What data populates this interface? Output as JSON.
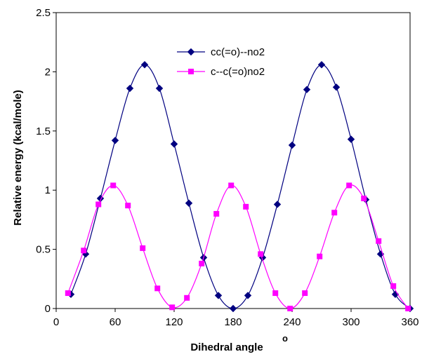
{
  "chart_data": {
    "type": "line",
    "xlabel": "Dihedral angle",
    "xlabel_superscript": "o",
    "ylabel": "Relative energy (kcal/mole)",
    "xlim": [
      0,
      360
    ],
    "ylim": [
      0,
      2.5
    ],
    "x_ticks": [
      0,
      60,
      120,
      180,
      240,
      300,
      360
    ],
    "y_ticks": [
      0,
      0.5,
      1,
      1.5,
      2,
      2.5
    ],
    "y_tick_labels": [
      "0",
      "0.5",
      "1",
      "1.5",
      "2",
      "2.5"
    ],
    "grid": false,
    "legend_position": "top-center",
    "series": [
      {
        "name": "cc(=o)--no2",
        "color": "#000080",
        "marker": "diamond",
        "x": [
          15,
          30,
          45,
          60,
          75,
          90,
          105,
          120,
          135,
          150,
          165,
          180,
          195,
          210,
          225,
          240,
          255,
          270,
          285,
          300,
          315,
          330,
          345,
          360
        ],
        "values": [
          0.12,
          0.46,
          0.93,
          1.42,
          1.86,
          2.06,
          1.86,
          1.39,
          0.89,
          0.43,
          0.11,
          0.0,
          0.11,
          0.43,
          0.88,
          1.38,
          1.85,
          2.06,
          1.87,
          1.43,
          0.92,
          0.46,
          0.12,
          0.0
        ]
      },
      {
        "name": "c--c(=o)no2",
        "color": "#ff00ff",
        "marker": "square",
        "x": [
          12,
          28,
          43,
          58,
          73,
          88,
          103,
          118,
          133,
          148,
          163,
          178,
          193,
          208,
          223,
          238,
          253,
          268,
          283,
          298,
          313,
          328,
          343,
          358
        ],
        "values": [
          0.13,
          0.49,
          0.88,
          1.04,
          0.87,
          0.51,
          0.17,
          0.01,
          0.09,
          0.38,
          0.8,
          1.04,
          0.86,
          0.46,
          0.13,
          0.0,
          0.13,
          0.44,
          0.81,
          1.04,
          0.93,
          0.57,
          0.19,
          0.0
        ]
      }
    ]
  }
}
